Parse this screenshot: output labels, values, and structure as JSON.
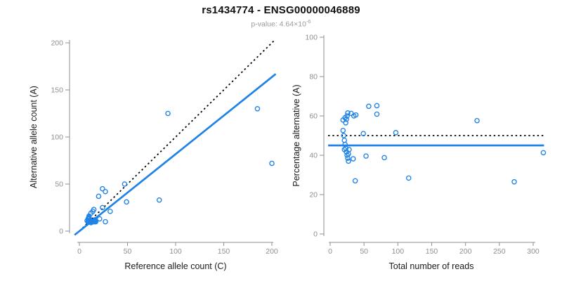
{
  "header": {
    "title": "rs1434774 - ENSG00000046889",
    "pvalue_prefix": "p-value: 4.64×10",
    "pvalue_exponent": "-6"
  },
  "colors": {
    "accent_blue": "#1E82E6",
    "line_black": "#000000",
    "axis_gray": "#8f8f8f",
    "label_black": "#1a1a1a",
    "subtitle_gray": "#9a9a9a",
    "point_fill": "#ffffff"
  },
  "chart_data": [
    {
      "type": "scatter",
      "panel": "left",
      "title": "",
      "xlabel": "Reference allele count (C)",
      "ylabel": "Alternative allele count (A)",
      "xlim": [
        0,
        200
      ],
      "ylim": [
        0,
        200
      ],
      "xticks": [
        0,
        50,
        100,
        150,
        200
      ],
      "yticks": [
        0,
        50,
        100,
        150,
        200
      ],
      "grid": false,
      "legend": "none",
      "points": [
        [
          92,
          125
        ],
        [
          185,
          130
        ],
        [
          200,
          72
        ],
        [
          83,
          33
        ],
        [
          47,
          50
        ],
        [
          49,
          31
        ],
        [
          24,
          45
        ],
        [
          27,
          42
        ],
        [
          20,
          37
        ],
        [
          32,
          21
        ],
        [
          27,
          10
        ],
        [
          12,
          9
        ],
        [
          13,
          10
        ],
        [
          15,
          10
        ],
        [
          16,
          11
        ],
        [
          17,
          10
        ],
        [
          14,
          10
        ],
        [
          16,
          10
        ],
        [
          8,
          11
        ],
        [
          9,
          13
        ],
        [
          10,
          15
        ],
        [
          10,
          10
        ],
        [
          11,
          10
        ],
        [
          12,
          10
        ],
        [
          10,
          14
        ],
        [
          16,
          12
        ],
        [
          14,
          21
        ],
        [
          12,
          19
        ],
        [
          15,
          23
        ],
        [
          10,
          16
        ],
        [
          24,
          25
        ],
        [
          9,
          10
        ],
        [
          10,
          13
        ],
        [
          21,
          13
        ]
      ],
      "lines": [
        {
          "name": "identity-line",
          "style": "dotted",
          "color": "#000000",
          "from": [
            0,
            0
          ],
          "to": [
            202,
            202
          ]
        },
        {
          "name": "regression-line",
          "style": "solid",
          "color": "#1E82E6",
          "from": [
            -5,
            -4.1
          ],
          "to": [
            204,
            166.9
          ]
        }
      ]
    },
    {
      "type": "scatter",
      "panel": "right",
      "title": "",
      "xlabel": "Total number of reads",
      "ylabel": "Percentage alternative (A)",
      "xlim": [
        0,
        300
      ],
      "ylim": [
        0,
        100
      ],
      "xticks": [
        0,
        50,
        100,
        150,
        200,
        250,
        300
      ],
      "yticks": [
        0,
        20,
        40,
        60,
        80,
        100
      ],
      "grid": false,
      "legend": "none",
      "points": [
        [
          217,
          57.6
        ],
        [
          315,
          41.3
        ],
        [
          272,
          26.5
        ],
        [
          116,
          28.4
        ],
        [
          97,
          51.5
        ],
        [
          80,
          38.8
        ],
        [
          69,
          65.2
        ],
        [
          69,
          60.9
        ],
        [
          57,
          64.9
        ],
        [
          53,
          39.6
        ],
        [
          37,
          27.0
        ],
        [
          21,
          42.9
        ],
        [
          23,
          43.5
        ],
        [
          25,
          40.0
        ],
        [
          27,
          40.7
        ],
        [
          27,
          37.0
        ],
        [
          24,
          41.7
        ],
        [
          26,
          38.5
        ],
        [
          19,
          57.9
        ],
        [
          22,
          59.1
        ],
        [
          25,
          60.0
        ],
        [
          20,
          50.0
        ],
        [
          21,
          47.6
        ],
        [
          22,
          45.5
        ],
        [
          24,
          58.3
        ],
        [
          28,
          42.9
        ],
        [
          35,
          60.0
        ],
        [
          31,
          61.3
        ],
        [
          38,
          60.5
        ],
        [
          26,
          61.5
        ],
        [
          49,
          51.0
        ],
        [
          19,
          52.6
        ],
        [
          23,
          56.5
        ],
        [
          34,
          38.2
        ]
      ],
      "lines": [
        {
          "name": "expected-50pct-line",
          "style": "dotted",
          "color": "#000000",
          "from": [
            -3,
            50
          ],
          "to": [
            316,
            50
          ]
        },
        {
          "name": "mean-percentage-line",
          "style": "solid",
          "color": "#1E82E6",
          "from": [
            -3,
            45
          ],
          "to": [
            316,
            45
          ]
        }
      ]
    }
  ]
}
